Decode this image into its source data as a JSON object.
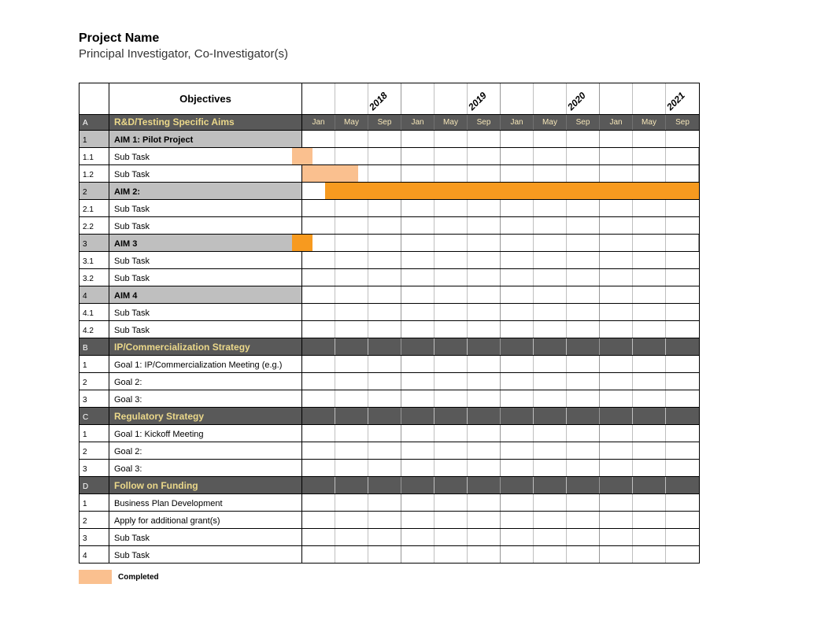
{
  "header": {
    "title": "Project Name",
    "subtitle": "Principal Investigator, Co-Investigator(s)"
  },
  "objectives_header": "Objectives",
  "years": [
    "2018",
    "2019",
    "2020",
    "2021"
  ],
  "months": [
    "Jan",
    "May",
    "Sep",
    "Jan",
    "May",
    "Sep",
    "Jan",
    "May",
    "Sep",
    "Jan",
    "May",
    "Sep"
  ],
  "month_cell_width": 42,
  "colors": {
    "section_bg": "#595959",
    "section_text": "#ebd88a",
    "aim_bg": "#bfbfbf",
    "border": "#000000",
    "cell_border": "#bfbfbf",
    "bar_completed": "#fac08f",
    "bar_active": "#f79a1f",
    "background": "#ffffff"
  },
  "legend": {
    "swatch_color": "#fac08f",
    "label": "Completed"
  },
  "rows": [
    {
      "type": "section",
      "idx": "A",
      "label": "R&D/Testing Specific Aims"
    },
    {
      "type": "aim",
      "idx": "1",
      "label": "AIM 1: Pilot Project"
    },
    {
      "type": "task",
      "idx": "1.1",
      "label": "Sub Task",
      "bars": [
        {
          "start": -0.3,
          "end": 0.3,
          "color": "#fac08f"
        }
      ]
    },
    {
      "type": "task",
      "idx": "1.2",
      "label": "Sub Task",
      "bars": [
        {
          "start": 0,
          "end": 1.7,
          "color": "#fac08f"
        }
      ]
    },
    {
      "type": "aim",
      "idx": "2",
      "label": "AIM 2:",
      "bars": [
        {
          "start": 0.7,
          "end": 12,
          "color": "#f79a1f"
        }
      ]
    },
    {
      "type": "task",
      "idx": "2.1",
      "label": "Sub Task"
    },
    {
      "type": "task",
      "idx": "2.2",
      "label": "Sub Task"
    },
    {
      "type": "aim",
      "idx": "3",
      "label": "AIM 3",
      "bars": [
        {
          "start": -0.3,
          "end": 0.3,
          "color": "#f79a1f"
        }
      ]
    },
    {
      "type": "task",
      "idx": "3.1",
      "label": "Sub Task"
    },
    {
      "type": "task",
      "idx": "3.2",
      "label": "Sub Task"
    },
    {
      "type": "aim",
      "idx": "4",
      "label": "AIM 4"
    },
    {
      "type": "task",
      "idx": "4.1",
      "label": "Sub Task"
    },
    {
      "type": "task",
      "idx": "4.2",
      "label": "Sub Task"
    },
    {
      "type": "section",
      "idx": "B",
      "label": "IP/Commercialization Strategy"
    },
    {
      "type": "task",
      "idx": "1",
      "label": "Goal 1: IP/Commercialization Meeting (e.g.)"
    },
    {
      "type": "task",
      "idx": "2",
      "label": "Goal 2:"
    },
    {
      "type": "task",
      "idx": "3",
      "label": "Goal 3:"
    },
    {
      "type": "section",
      "idx": "C",
      "label": "Regulatory Strategy"
    },
    {
      "type": "task",
      "idx": "1",
      "label": "Goal 1: Kickoff Meeting"
    },
    {
      "type": "task",
      "idx": "2",
      "label": "Goal 2:"
    },
    {
      "type": "task",
      "idx": "3",
      "label": "Goal 3:"
    },
    {
      "type": "section",
      "idx": "D",
      "label": "Follow on Funding"
    },
    {
      "type": "task",
      "idx": "1",
      "label": "Business Plan Development"
    },
    {
      "type": "task",
      "idx": "2",
      "label": "Apply for additional grant(s)"
    },
    {
      "type": "task",
      "idx": "3",
      "label": "Sub Task"
    },
    {
      "type": "task",
      "idx": "4",
      "label": "Sub Task"
    }
  ]
}
